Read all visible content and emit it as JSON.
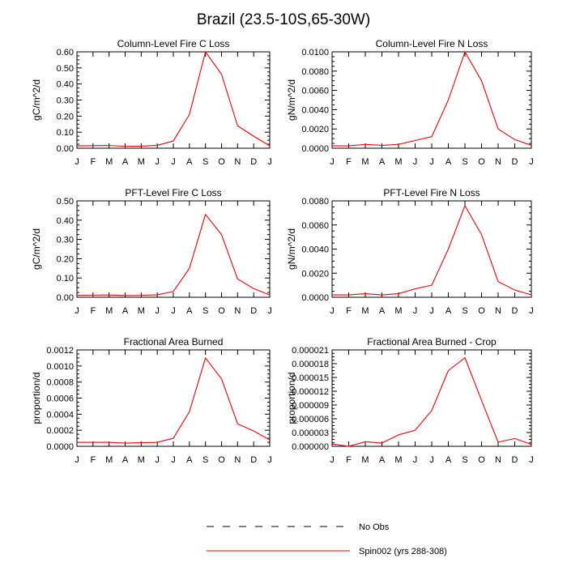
{
  "figure_title": "Brazil (23.5-10S,65-30W)",
  "legend": {
    "entries": [
      {
        "label": "No Obs",
        "style": "dashed",
        "color": "#000000"
      },
      {
        "label": "Spin002 (yrs 288-308)",
        "style": "solid",
        "color": "#e8000b"
      }
    ]
  },
  "chart_data": [
    {
      "type": "line",
      "title": "Column-Level Fire C Loss",
      "xlabel": "",
      "ylabel": "gC/m^2/d",
      "categories": [
        "J",
        "F",
        "M",
        "A",
        "M",
        "J",
        "J",
        "A",
        "S",
        "O",
        "N",
        "D",
        "J"
      ],
      "ylim": [
        0,
        0.6
      ],
      "yticks": [
        "0.00",
        "0.10",
        "0.20",
        "0.30",
        "0.40",
        "0.50",
        "0.60"
      ],
      "series": [
        {
          "name": "Spin002 (yrs 288-308)",
          "color": "#e8000b",
          "values": [
            0.015,
            0.016,
            0.017,
            0.012,
            0.013,
            0.018,
            0.045,
            0.21,
            0.6,
            0.46,
            0.14,
            0.075,
            0.015
          ]
        }
      ]
    },
    {
      "type": "line",
      "title": "Column-Level Fire N Loss",
      "xlabel": "",
      "ylabel": "gN/m^2/d",
      "categories": [
        "J",
        "F",
        "M",
        "A",
        "M",
        "J",
        "J",
        "A",
        "S",
        "O",
        "N",
        "D",
        "J"
      ],
      "ylim": [
        0,
        0.01
      ],
      "yticks": [
        "0.0000",
        "0.0020",
        "0.0040",
        "0.0060",
        "0.0080",
        "0.0100"
      ],
      "series": [
        {
          "name": "Spin002 (yrs 288-308)",
          "color": "#e8000b",
          "values": [
            0.00025,
            0.00025,
            0.0004,
            0.0003,
            0.0004,
            0.0008,
            0.0012,
            0.005,
            0.01,
            0.007,
            0.002,
            0.0009,
            0.0003
          ]
        }
      ]
    },
    {
      "type": "line",
      "title": "PFT-Level Fire C Loss",
      "xlabel": "",
      "ylabel": "gC/m^2/d",
      "categories": [
        "J",
        "F",
        "M",
        "A",
        "M",
        "J",
        "J",
        "A",
        "S",
        "O",
        "N",
        "D",
        "J"
      ],
      "ylim": [
        0,
        0.5
      ],
      "yticks": [
        "0.00",
        "0.10",
        "0.20",
        "0.30",
        "0.40",
        "0.50"
      ],
      "series": [
        {
          "name": "Spin002 (yrs 288-308)",
          "color": "#e8000b",
          "values": [
            0.01,
            0.011,
            0.012,
            0.009,
            0.01,
            0.013,
            0.03,
            0.15,
            0.43,
            0.325,
            0.095,
            0.045,
            0.012
          ]
        }
      ]
    },
    {
      "type": "line",
      "title": "PFT-Level Fire N Loss",
      "xlabel": "",
      "ylabel": "gN/m^2/d",
      "categories": [
        "J",
        "F",
        "M",
        "A",
        "M",
        "J",
        "J",
        "A",
        "S",
        "O",
        "N",
        "D",
        "J"
      ],
      "ylim": [
        0,
        0.008
      ],
      "yticks": [
        "0.0000",
        "0.0020",
        "0.0040",
        "0.0060",
        "0.0080"
      ],
      "series": [
        {
          "name": "Spin002 (yrs 288-308)",
          "color": "#e8000b",
          "values": [
            0.0002,
            0.0002,
            0.0003,
            0.0002,
            0.0003,
            0.0007,
            0.001,
            0.004,
            0.0076,
            0.0052,
            0.0013,
            0.0006,
            0.0002
          ]
        }
      ]
    },
    {
      "type": "line",
      "title": "Fractional Area Burned",
      "xlabel": "",
      "ylabel": "proportion/d",
      "categories": [
        "J",
        "F",
        "M",
        "A",
        "M",
        "J",
        "J",
        "A",
        "S",
        "O",
        "N",
        "D",
        "J"
      ],
      "ylim": [
        0,
        0.0012
      ],
      "yticks": [
        "0.0000",
        "0.0002",
        "0.0004",
        "0.0006",
        "0.0008",
        "0.0010",
        "0.0012"
      ],
      "series": [
        {
          "name": "Spin002 (yrs 288-308)",
          "color": "#e8000b",
          "values": [
            5e-05,
            5e-05,
            5e-05,
            4e-05,
            4.5e-05,
            5e-05,
            0.0001,
            0.00043,
            0.0011,
            0.00084,
            0.00028,
            0.00019,
            8e-05
          ]
        }
      ]
    },
    {
      "type": "line",
      "title": "Fractional Area Burned - Crop",
      "xlabel": "",
      "ylabel": "proportion/d",
      "categories": [
        "J",
        "F",
        "M",
        "A",
        "M",
        "J",
        "J",
        "A",
        "S",
        "O",
        "N",
        "D",
        "J"
      ],
      "ylim": [
        0,
        2.1e-05
      ],
      "yticks": [
        "0.000000",
        "0.000003",
        "0.000006",
        "0.000009",
        "0.000012",
        "0.000015",
        "0.000018",
        "0.000021"
      ],
      "series": [
        {
          "name": "Spin002 (yrs 288-308)",
          "color": "#e8000b",
          "values": [
            5e-07,
            0.0,
            1e-06,
            7e-07,
            2.5e-06,
            3.5e-06,
            7.8e-06,
            1.65e-05,
            1.93e-05,
            1e-05,
            9e-07,
            1.7e-06,
            4e-07
          ]
        }
      ]
    }
  ]
}
